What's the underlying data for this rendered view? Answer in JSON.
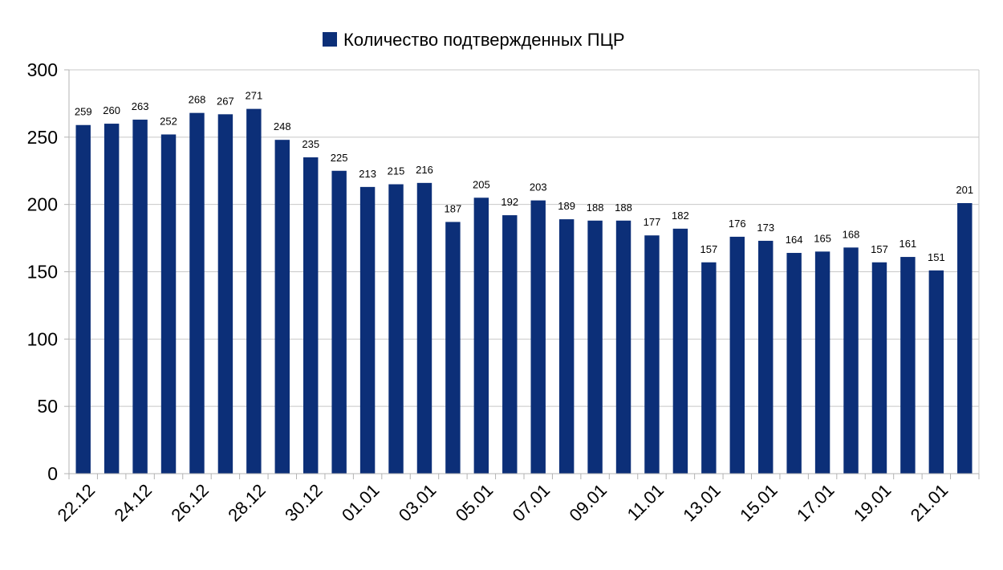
{
  "chart_data": {
    "type": "bar",
    "legend_position": "top-center",
    "grid": true,
    "colors": {
      "bar": "#0c2f78",
      "grid": "#c8c8c8",
      "axis": "#b3b3b3",
      "text": "#000000"
    },
    "ylim": [
      0,
      300
    ],
    "yticks": [
      0,
      50,
      100,
      150,
      200,
      250,
      300
    ],
    "categories": [
      "22.12",
      "23.12",
      "24.12",
      "25.12",
      "26.12",
      "27.12",
      "28.12",
      "29.12",
      "30.12",
      "31.12",
      "01.01",
      "02.01",
      "03.01",
      "04.01",
      "05.01",
      "06.01",
      "07.01",
      "08.01",
      "09.01",
      "10.01",
      "11.01",
      "12.01",
      "13.01",
      "14.01",
      "15.01",
      "16.01",
      "17.01",
      "18.01",
      "19.01",
      "20.01",
      "21.01",
      "22.01"
    ],
    "xtick_labels_shown": [
      "22.12",
      "24.12",
      "26.12",
      "28.12",
      "30.12",
      "01.01",
      "03.01",
      "05.01",
      "07.01",
      "09.01",
      "11.01",
      "13.01",
      "15.01",
      "17.01",
      "19.01",
      "21.01"
    ],
    "series": [
      {
        "name": "Количество подтвержденных ПЦР",
        "values": [
          259,
          260,
          263,
          252,
          268,
          267,
          271,
          248,
          235,
          225,
          213,
          215,
          216,
          187,
          205,
          192,
          203,
          189,
          188,
          188,
          177,
          182,
          157,
          176,
          173,
          164,
          165,
          168,
          157,
          161,
          151,
          201
        ]
      }
    ]
  }
}
